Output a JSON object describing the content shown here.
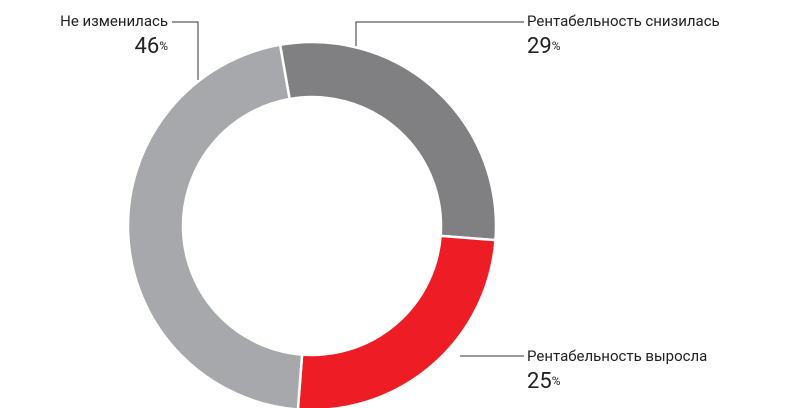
{
  "chart_data": {
    "type": "donut",
    "categories": [
      "Рентабельность снизилась",
      "Рентабельность выросла",
      "Не изменилась"
    ],
    "values": [
      29,
      25,
      46
    ],
    "unit": "%",
    "colors": [
      "#808083",
      "#ee1c25",
      "#a7a8ab"
    ]
  }
}
